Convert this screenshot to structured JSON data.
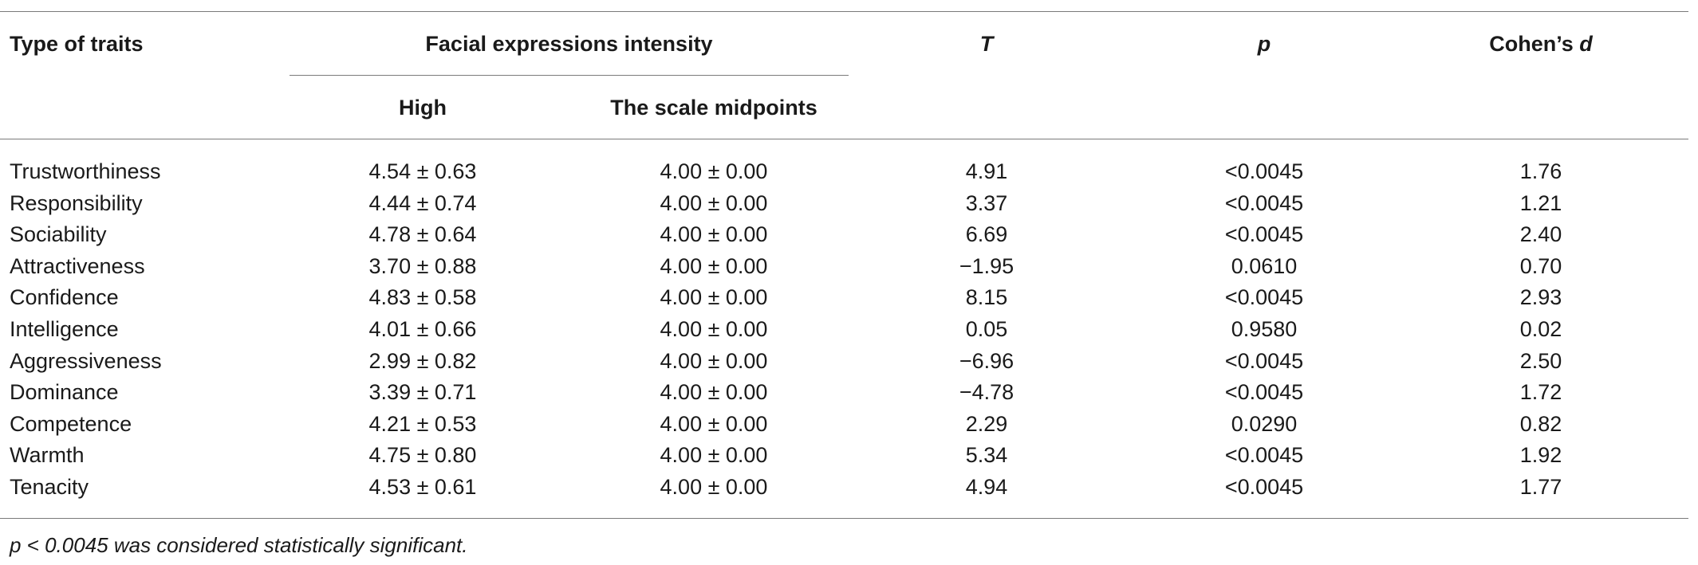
{
  "table": {
    "headers": {
      "type_of_traits": "Type of traits",
      "facial_intensity": "Facial expressions intensity",
      "high": "High",
      "scale_midpoints": "The scale midpoints",
      "t": "T",
      "p": "p",
      "cohens_prefix": "Cohen’s ",
      "cohens_d": "d"
    },
    "rows": [
      {
        "trait": "Trustworthiness",
        "high": "4.54 ± 0.63",
        "mid": "4.00 ± 0.00",
        "t": "4.91",
        "p": "<0.0045",
        "d": "1.76"
      },
      {
        "trait": "Responsibility",
        "high": "4.44 ± 0.74",
        "mid": "4.00 ± 0.00",
        "t": "3.37",
        "p": "<0.0045",
        "d": "1.21"
      },
      {
        "trait": "Sociability",
        "high": "4.78 ± 0.64",
        "mid": "4.00 ± 0.00",
        "t": "6.69",
        "p": "<0.0045",
        "d": "2.40"
      },
      {
        "trait": "Attractiveness",
        "high": "3.70 ± 0.88",
        "mid": "4.00 ± 0.00",
        "t": "−1.95",
        "p": "0.0610",
        "d": "0.70"
      },
      {
        "trait": "Confidence",
        "high": "4.83 ± 0.58",
        "mid": "4.00 ± 0.00",
        "t": "8.15",
        "p": "<0.0045",
        "d": "2.93"
      },
      {
        "trait": "Intelligence",
        "high": "4.01 ± 0.66",
        "mid": "4.00 ± 0.00",
        "t": "0.05",
        "p": "0.9580",
        "d": "0.02"
      },
      {
        "trait": "Aggressiveness",
        "high": "2.99 ± 0.82",
        "mid": "4.00 ± 0.00",
        "t": "−6.96",
        "p": "<0.0045",
        "d": "2.50"
      },
      {
        "trait": "Dominance",
        "high": "3.39 ± 0.71",
        "mid": "4.00 ± 0.00",
        "t": "−4.78",
        "p": "<0.0045",
        "d": "1.72"
      },
      {
        "trait": "Competence",
        "high": "4.21 ± 0.53",
        "mid": "4.00 ± 0.00",
        "t": "2.29",
        "p": "0.0290",
        "d": "0.82"
      },
      {
        "trait": "Warmth",
        "high": "4.75 ± 0.80",
        "mid": "4.00 ± 0.00",
        "t": "5.34",
        "p": "<0.0045",
        "d": "1.92"
      },
      {
        "trait": "Tenacity",
        "high": "4.53 ± 0.61",
        "mid": "4.00 ± 0.00",
        "t": "4.94",
        "p": "<0.0045",
        "d": "1.77"
      }
    ],
    "footnote": "p < 0.0045 was considered statistically significant."
  }
}
